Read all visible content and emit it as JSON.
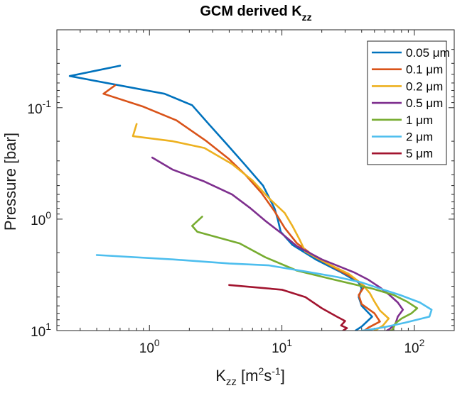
{
  "chart_data": {
    "type": "line",
    "title": "GCM derived K",
    "title_sub": "zz",
    "xlabel": {
      "base": "K",
      "sub": "zz",
      "unit_pre": " [m",
      "sup1": "2",
      "unit_mid": "s",
      "sup2": "-1",
      "unit_post": "]"
    },
    "ylabel": "Pressure [bar]",
    "xscale": "log",
    "yscale": "log",
    "yreversed": true,
    "xlim": [
      0.2,
      200
    ],
    "ylim": [
      0.02,
      10
    ],
    "x_ticks": [
      {
        "value": 1,
        "base": "10",
        "exp": "0"
      },
      {
        "value": 10,
        "base": "10",
        "exp": "1"
      },
      {
        "value": 100,
        "base": "10",
        "exp": "2"
      }
    ],
    "y_ticks": [
      {
        "value": 0.1,
        "base": "10",
        "exp": "-1"
      },
      {
        "value": 1,
        "base": "10",
        "exp": "0"
      },
      {
        "value": 10,
        "base": "10",
        "exp": "1"
      }
    ],
    "legend_position": "top-right",
    "series": [
      {
        "name": "0.05 μm",
        "color": "#0072BD",
        "points": [
          [
            0.6,
            0.042
          ],
          [
            0.25,
            0.052
          ],
          [
            0.55,
            0.062
          ],
          [
            1.3,
            0.075
          ],
          [
            2.1,
            0.095
          ],
          [
            2.8,
            0.14
          ],
          [
            3.8,
            0.21
          ],
          [
            5.2,
            0.32
          ],
          [
            7.2,
            0.5
          ],
          [
            8.8,
            0.8
          ],
          [
            9.3,
            1.0
          ],
          [
            9.8,
            1.3
          ],
          [
            12,
            1.7
          ],
          [
            18,
            2.3
          ],
          [
            28,
            3.0
          ],
          [
            38,
            3.7
          ],
          [
            40,
            4.2
          ],
          [
            38,
            5.0
          ],
          [
            40,
            6.0
          ],
          [
            48,
            7.5
          ],
          [
            40,
            9.2
          ],
          [
            36,
            10.0
          ]
        ]
      },
      {
        "name": "0.1 μm",
        "color": "#D95319",
        "points": [
          [
            0.55,
            0.063
          ],
          [
            0.45,
            0.075
          ],
          [
            0.9,
            0.098
          ],
          [
            1.6,
            0.13
          ],
          [
            2.7,
            0.2
          ],
          [
            4,
            0.29
          ],
          [
            5.3,
            0.4
          ],
          [
            7,
            0.58
          ],
          [
            8.8,
            0.85
          ],
          [
            10.5,
            1.2
          ],
          [
            13,
            1.65
          ],
          [
            18,
            2.2
          ],
          [
            26,
            2.8
          ],
          [
            35,
            3.4
          ],
          [
            42,
            4.0
          ],
          [
            38,
            4.8
          ],
          [
            40,
            5.8
          ],
          [
            50,
            7.0
          ],
          [
            55,
            8.3
          ],
          [
            45,
            9.4
          ],
          [
            42,
            10.0
          ]
        ]
      },
      {
        "name": "0.2 μm",
        "color": "#EDB120",
        "points": [
          [
            0.8,
            0.14
          ],
          [
            0.75,
            0.18
          ],
          [
            1.5,
            0.2
          ],
          [
            2.6,
            0.23
          ],
          [
            4.2,
            0.32
          ],
          [
            6,
            0.45
          ],
          [
            8,
            0.65
          ],
          [
            10.5,
            0.88
          ],
          [
            12,
            1.15
          ],
          [
            13.5,
            1.5
          ],
          [
            15,
            1.95
          ],
          [
            22,
            2.5
          ],
          [
            32,
            3.1
          ],
          [
            40,
            3.8
          ],
          [
            46,
            4.6
          ],
          [
            50,
            5.5
          ],
          [
            55,
            6.6
          ],
          [
            64,
            7.8
          ],
          [
            58,
            9.0
          ],
          [
            52,
            9.8
          ],
          [
            50,
            10.0
          ]
        ]
      },
      {
        "name": "0.5 μm",
        "color": "#7E2F8E",
        "points": [
          [
            1.05,
            0.28
          ],
          [
            1.5,
            0.36
          ],
          [
            2.6,
            0.46
          ],
          [
            4.2,
            0.6
          ],
          [
            5.8,
            0.8
          ],
          [
            7.6,
            1.05
          ],
          [
            10,
            1.35
          ],
          [
            13,
            1.75
          ],
          [
            20,
            2.3
          ],
          [
            35,
            3.0
          ],
          [
            45,
            3.5
          ],
          [
            55,
            4.1
          ],
          [
            65,
            4.8
          ],
          [
            75,
            5.6
          ],
          [
            82,
            6.5
          ],
          [
            75,
            7.5
          ],
          [
            72,
            8.7
          ],
          [
            65,
            9.7
          ],
          [
            62,
            10.0
          ]
        ]
      },
      {
        "name": "1 μm",
        "color": "#77AC30",
        "points": [
          [
            2.5,
            0.95
          ],
          [
            2.1,
            1.15
          ],
          [
            2.3,
            1.3
          ],
          [
            4.8,
            1.65
          ],
          [
            7.5,
            2.2
          ],
          [
            13,
            2.9
          ],
          [
            25,
            3.5
          ],
          [
            48,
            4.2
          ],
          [
            70,
            4.8
          ],
          [
            88,
            5.5
          ],
          [
            105,
            6.3
          ],
          [
            95,
            7.0
          ],
          [
            80,
            7.8
          ],
          [
            72,
            8.6
          ],
          [
            70,
            9.3
          ],
          [
            68,
            9.9
          ],
          [
            66,
            10.0
          ]
        ]
      },
      {
        "name": "2 μm",
        "color": "#4DBEEE",
        "points": [
          [
            0.4,
            2.1
          ],
          [
            1.5,
            2.3
          ],
          [
            4,
            2.5
          ],
          [
            8,
            2.6
          ],
          [
            10.5,
            2.75
          ],
          [
            15,
            2.95
          ],
          [
            26,
            3.3
          ],
          [
            40,
            3.7
          ],
          [
            55,
            4.2
          ],
          [
            78,
            4.8
          ],
          [
            110,
            5.6
          ],
          [
            135,
            6.5
          ],
          [
            130,
            7.5
          ],
          [
            85,
            8.5
          ],
          [
            60,
            9.3
          ],
          [
            44,
            9.9
          ],
          [
            40,
            10.0
          ]
        ]
      },
      {
        "name": "5 μm",
        "color": "#A2142F",
        "points": [
          [
            4,
            3.9
          ],
          [
            10,
            4.3
          ],
          [
            15,
            5.0
          ],
          [
            20,
            6.3
          ],
          [
            26,
            7.5
          ],
          [
            30,
            8.2
          ],
          [
            28,
            9.0
          ],
          [
            31,
            9.5
          ],
          [
            29,
            10.0
          ]
        ]
      }
    ]
  }
}
